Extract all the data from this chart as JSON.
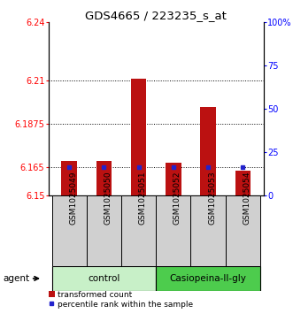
{
  "title": "GDS4665 / 223235_s_at",
  "samples": [
    "GSM1025049",
    "GSM1025050",
    "GSM1025051",
    "GSM1025052",
    "GSM1025053",
    "GSM1025054"
  ],
  "bar_values": [
    6.168,
    6.168,
    6.211,
    6.167,
    6.196,
    6.163
  ],
  "bar_bottom": 6.15,
  "percentile_values": [
    6.165,
    6.165,
    6.165,
    6.165,
    6.165,
    6.165
  ],
  "ylim_left": [
    6.15,
    6.24
  ],
  "ylim_right": [
    0,
    100
  ],
  "yticks_left": [
    6.15,
    6.165,
    6.1875,
    6.21,
    6.24
  ],
  "yticks_right": [
    0,
    25,
    50,
    75,
    100
  ],
  "ytick_labels_left": [
    "6.15",
    "6.165",
    "6.1875",
    "6.21",
    "6.24"
  ],
  "ytick_labels_right": [
    "0",
    "25",
    "50",
    "75",
    "100%"
  ],
  "hlines": [
    6.165,
    6.1875,
    6.21
  ],
  "groups": [
    {
      "label": "control",
      "start": 0,
      "end": 2,
      "color": "#c8f0c8"
    },
    {
      "label": "Casiopeina-II-gly",
      "start": 3,
      "end": 5,
      "color": "#4dcc4d"
    }
  ],
  "bar_color": "#bb1111",
  "percentile_color": "#2222cc",
  "bar_width": 0.45,
  "agent_label": "agent",
  "legend_bar_label": "transformed count",
  "legend_percentile_label": "percentile rank within the sample",
  "title_fontsize": 9.5,
  "axis_fontsize": 7,
  "sample_fontsize": 6.5,
  "group_fontsize": 7.5,
  "legend_fontsize": 6.5
}
